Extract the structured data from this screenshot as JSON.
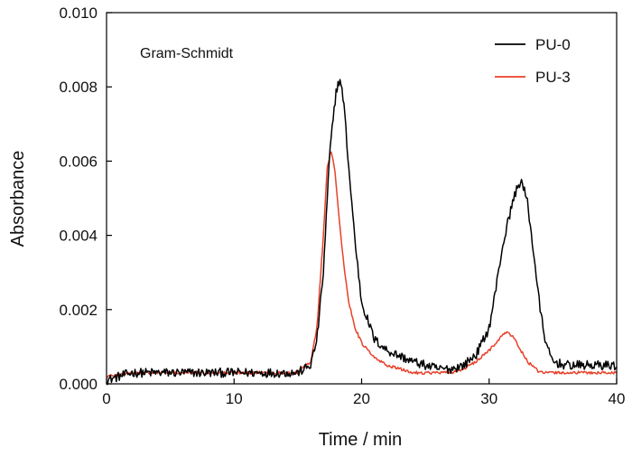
{
  "chart_data": {
    "type": "line",
    "annotation": "Gram-Schmidt",
    "xlabel": "Time / min",
    "ylabel": "Absorbance",
    "xlim": [
      0,
      40
    ],
    "ylim": [
      0,
      0.01
    ],
    "xticks": [
      0,
      10,
      20,
      30,
      40
    ],
    "xtick_labels": [
      "0",
      "10",
      "20",
      "30",
      "40"
    ],
    "yticks": [
      0,
      0.002,
      0.004,
      0.006,
      0.008,
      0.01
    ],
    "ytick_labels": [
      "0.000",
      "0.002",
      "0.004",
      "0.006",
      "0.008",
      "0.010"
    ],
    "grid": false,
    "legend_position": "top-right",
    "series": [
      {
        "name": "PU-0",
        "color": "#000000",
        "x": [
          0,
          2,
          4,
          6,
          8,
          10,
          12,
          14,
          15,
          16,
          16.5,
          17,
          17.5,
          18,
          18.3,
          18.6,
          19,
          19.5,
          20,
          21,
          22,
          24,
          26,
          27,
          28,
          29,
          30,
          30.5,
          31,
          31.5,
          32,
          32.5,
          33,
          33.5,
          34,
          34.5,
          35,
          36,
          38,
          40
        ],
        "y": [
          0.0001,
          0.0003,
          0.0003,
          0.0003,
          0.0003,
          0.0003,
          0.0003,
          0.0003,
          0.0003,
          0.0005,
          0.0012,
          0.003,
          0.0062,
          0.0079,
          0.0082,
          0.0076,
          0.0058,
          0.0038,
          0.0022,
          0.0012,
          0.0009,
          0.0006,
          0.0004,
          0.0004,
          0.0005,
          0.0008,
          0.0015,
          0.0025,
          0.0036,
          0.0044,
          0.0051,
          0.0055,
          0.0049,
          0.0035,
          0.002,
          0.001,
          0.0006,
          0.0005,
          0.0005,
          0.0005
        ]
      },
      {
        "name": "PU-3",
        "color": "#e8412a",
        "x": [
          0,
          2,
          4,
          6,
          8,
          10,
          12,
          14,
          15,
          16,
          16.5,
          17,
          17.3,
          17.6,
          17.9,
          18.2,
          18.6,
          19,
          19.5,
          20,
          21,
          22,
          24,
          26,
          27,
          28,
          29,
          30,
          30.5,
          31,
          31.5,
          32,
          32.5,
          33,
          34,
          35,
          36,
          38,
          40
        ],
        "y": [
          0.0002,
          0.0003,
          0.0003,
          0.0003,
          0.0003,
          0.0003,
          0.0003,
          0.0003,
          0.0003,
          0.0006,
          0.0015,
          0.004,
          0.0058,
          0.0063,
          0.0058,
          0.0046,
          0.0032,
          0.0022,
          0.0015,
          0.0011,
          0.0007,
          0.0005,
          0.0003,
          0.0003,
          0.0003,
          0.0004,
          0.0006,
          0.0009,
          0.0011,
          0.0013,
          0.0014,
          0.0012,
          0.0009,
          0.0006,
          0.0003,
          0.0003,
          0.0003,
          0.0003,
          0.0003
        ]
      }
    ]
  }
}
